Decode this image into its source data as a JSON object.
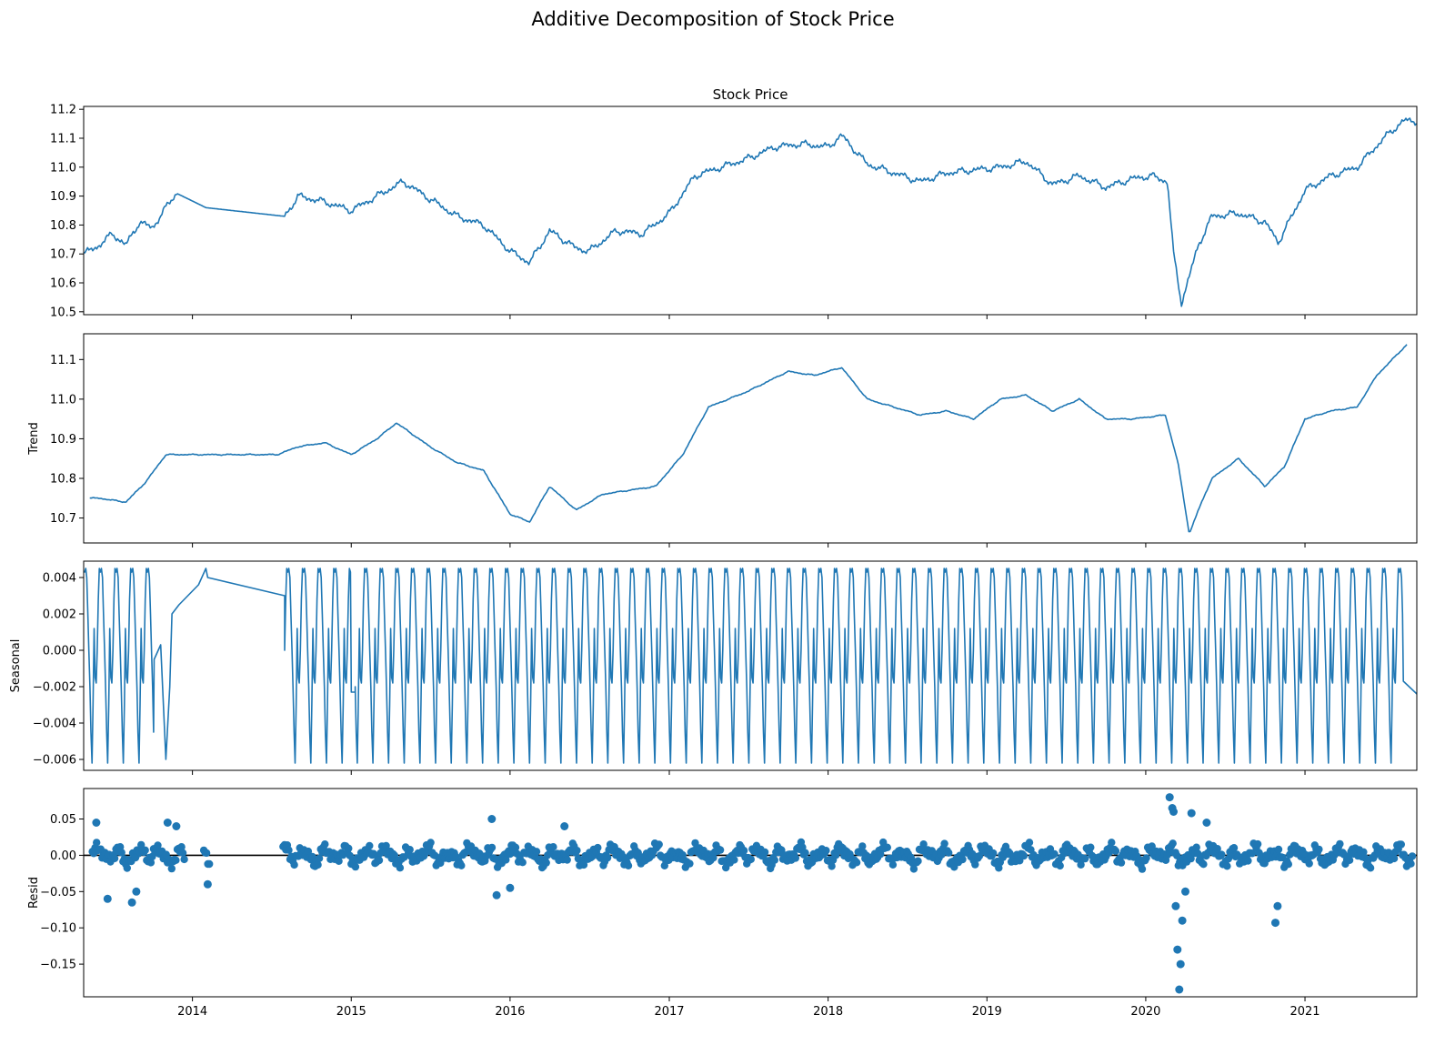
{
  "figure": {
    "title": "Additive Decomposition of Stock Price",
    "line_color": "#1f77b4",
    "zero_line_color": "#000000"
  },
  "chart_data": [
    {
      "type": "line",
      "name": "observed",
      "title": "Stock Price",
      "ylabel": "",
      "xlim": [
        "2013-04-26",
        "2021-09-15"
      ],
      "ylim": [
        10.49,
        11.21
      ],
      "yticks": [
        "10.5",
        "10.6",
        "10.7",
        "10.8",
        "10.9",
        "11.0",
        "11.1",
        "11.2"
      ],
      "x": [
        "2013-04-26",
        "2013-06-01",
        "2013-07-01",
        "2013-08-01",
        "2013-09-01",
        "2013-10-01",
        "2013-11-01",
        "2013-11-25",
        "2014-02-01",
        "2014-08-01",
        "2014-09-01",
        "2014-11-01",
        "2015-01-01",
        "2015-03-01",
        "2015-05-01",
        "2015-07-01",
        "2015-09-01",
        "2015-11-01",
        "2016-01-01",
        "2016-02-15",
        "2016-04-01",
        "2016-06-01",
        "2016-07-01",
        "2016-09-01",
        "2016-11-01",
        "2017-01-01",
        "2017-03-01",
        "2017-05-01",
        "2017-07-01",
        "2017-09-01",
        "2017-11-01",
        "2018-01-01",
        "2018-02-01",
        "2018-04-01",
        "2018-06-01",
        "2018-08-01",
        "2018-10-01",
        "2018-12-01",
        "2019-02-01",
        "2019-04-01",
        "2019-06-01",
        "2019-08-01",
        "2019-10-01",
        "2019-12-01",
        "2020-01-15",
        "2020-02-20",
        "2020-03-05",
        "2020-03-23",
        "2020-05-01",
        "2020-06-01",
        "2020-08-01",
        "2020-10-01",
        "2020-11-01",
        "2021-01-01",
        "2021-03-01",
        "2021-05-01",
        "2021-07-01",
        "2021-08-15",
        "2021-09-15"
      ],
      "values": [
        10.7,
        10.73,
        10.77,
        10.73,
        10.81,
        10.79,
        10.86,
        10.91,
        10.86,
        10.83,
        10.9,
        10.88,
        10.85,
        10.9,
        10.95,
        10.89,
        10.83,
        10.8,
        10.71,
        10.67,
        10.78,
        10.72,
        10.71,
        10.78,
        10.77,
        10.84,
        10.97,
        11.0,
        11.03,
        11.07,
        11.08,
        11.07,
        11.11,
        11.01,
        10.98,
        10.95,
        10.98,
        10.99,
        11.0,
        11.02,
        10.94,
        10.97,
        10.93,
        10.96,
        10.97,
        10.95,
        10.7,
        10.53,
        10.73,
        10.83,
        10.84,
        10.81,
        10.74,
        10.92,
        10.97,
        11.0,
        11.1,
        11.16,
        11.16
      ]
    },
    {
      "type": "line",
      "name": "trend",
      "ylabel": "Trend",
      "xlim": [
        "2013-04-26",
        "2021-09-15"
      ],
      "ylim": [
        10.637,
        11.165
      ],
      "yticks": [
        "10.7",
        "10.8",
        "10.9",
        "11.0",
        "11.1"
      ],
      "x": [
        "2013-05-10",
        "2013-06-01",
        "2013-08-01",
        "2013-09-15",
        "2013-11-01",
        "2014-01-01",
        "2014-07-15",
        "2014-09-01",
        "2014-11-01",
        "2015-01-01",
        "2015-03-01",
        "2015-04-15",
        "2015-07-01",
        "2015-09-01",
        "2015-11-01",
        "2016-01-01",
        "2016-02-15",
        "2016-04-01",
        "2016-06-01",
        "2016-08-01",
        "2016-10-01",
        "2016-12-01",
        "2017-02-01",
        "2017-04-01",
        "2017-07-01",
        "2017-10-01",
        "2017-12-01",
        "2018-02-01",
        "2018-04-01",
        "2018-06-01",
        "2018-08-01",
        "2018-10-01",
        "2018-12-01",
        "2019-02-01",
        "2019-04-01",
        "2019-06-01",
        "2019-08-01",
        "2019-10-01",
        "2019-12-01",
        "2020-02-15",
        "2020-03-15",
        "2020-04-10",
        "2020-05-01",
        "2020-06-01",
        "2020-08-01",
        "2020-10-01",
        "2020-11-15",
        "2021-01-01",
        "2021-03-01",
        "2021-05-01",
        "2021-06-15",
        "2021-08-25"
      ],
      "values": [
        10.75,
        10.75,
        10.74,
        10.79,
        10.86,
        10.86,
        10.86,
        10.88,
        10.89,
        10.86,
        10.9,
        10.94,
        10.88,
        10.84,
        10.82,
        10.71,
        10.69,
        10.78,
        10.72,
        10.76,
        10.77,
        10.78,
        10.86,
        10.98,
        11.02,
        11.07,
        11.06,
        11.08,
        11.0,
        10.98,
        10.96,
        10.97,
        10.95,
        11.0,
        11.01,
        10.97,
        11.0,
        10.95,
        10.95,
        10.96,
        10.84,
        10.66,
        10.72,
        10.8,
        10.85,
        10.78,
        10.83,
        10.95,
        10.97,
        10.98,
        11.06,
        11.14
      ]
    },
    {
      "type": "line",
      "name": "seasonal",
      "ylabel": "Seasonal",
      "xlim": [
        "2013-04-26",
        "2021-09-15"
      ],
      "ylim": [
        -0.0066,
        0.0049
      ],
      "yticks": [
        "−0.006",
        "−0.004",
        "−0.002",
        "0.000",
        "0.002",
        "0.004"
      ],
      "cycle_days": 36,
      "cycle_shape": [
        0.0043,
        0.0045,
        0.004,
        0.002,
        0.0,
        -0.002,
        -0.0045,
        -0.0062,
        -0.003,
        0.0012,
        -0.0015,
        -0.0018,
        0.0,
        0.0028,
        0.0045
      ],
      "segments": [
        {
          "start": "2013-04-26",
          "end": "2013-10-05",
          "mode": "cycle"
        },
        {
          "start": "2013-10-05",
          "end": "2013-11-15",
          "mode": "points",
          "x": [
            "2013-10-05",
            "2013-10-20",
            "2013-11-01",
            "2013-11-10",
            "2013-11-15"
          ],
          "values": [
            -0.0005,
            0.0003,
            -0.006,
            -0.002,
            0.002
          ]
        },
        {
          "start": "2013-11-15",
          "end": "2014-02-05",
          "mode": "points",
          "x": [
            "2013-11-15",
            "2013-12-01",
            "2014-01-15",
            "2014-02-01",
            "2014-02-05"
          ],
          "values": [
            0.002,
            0.0025,
            0.0036,
            0.0045,
            0.004
          ]
        },
        {
          "start": "2014-02-05",
          "end": "2014-08-01",
          "mode": "points",
          "x": [
            "2014-02-05",
            "2014-08-01"
          ],
          "values": [
            0.004,
            0.003
          ]
        },
        {
          "start": "2014-08-01",
          "end": "2015-01-01",
          "mode": "cycle"
        },
        {
          "start": "2015-01-01",
          "end": "2015-01-10",
          "mode": "points",
          "x": [
            "2015-01-01",
            "2015-01-10"
          ],
          "values": [
            -0.0023,
            -0.0023
          ]
        },
        {
          "start": "2015-01-10",
          "end": "2021-08-15",
          "mode": "cycle"
        },
        {
          "start": "2021-08-15",
          "end": "2021-09-15",
          "mode": "points",
          "x": [
            "2021-08-15",
            "2021-09-15"
          ],
          "values": [
            -0.0017,
            -0.0024
          ]
        }
      ]
    },
    {
      "type": "scatter",
      "name": "resid",
      "ylabel": "Resid",
      "xlim": [
        "2013-04-26",
        "2021-09-15"
      ],
      "ylim": [
        -0.195,
        0.092
      ],
      "yticks": [
        "−0.15",
        "−0.10",
        "−0.05",
        "0.00",
        "0.05"
      ],
      "baseline": 0,
      "base_spread": 0.012,
      "gaps": [
        [
          "2013-12-15",
          "2014-01-25"
        ],
        [
          "2014-02-12",
          "2014-07-28"
        ]
      ],
      "extreme_points": {
        "x": [
          "2013-05-25",
          "2013-06-20",
          "2013-08-15",
          "2013-08-25",
          "2013-11-05",
          "2013-11-25",
          "2014-02-05",
          "2015-11-20",
          "2015-12-01",
          "2016-01-01",
          "2016-05-05",
          "2020-02-25",
          "2020-03-02",
          "2020-03-05",
          "2020-03-10",
          "2020-03-14",
          "2020-03-18",
          "2020-03-21",
          "2020-03-25",
          "2020-04-01",
          "2020-04-15",
          "2020-05-20",
          "2020-10-25",
          "2020-10-30"
        ],
        "values": [
          0.045,
          -0.06,
          -0.065,
          -0.05,
          0.045,
          0.04,
          -0.04,
          0.05,
          -0.055,
          -0.045,
          0.04,
          0.08,
          0.065,
          0.06,
          -0.07,
          -0.13,
          -0.185,
          -0.15,
          -0.09,
          -0.05,
          0.058,
          0.045,
          -0.093,
          -0.07
        ]
      }
    }
  ],
  "x_axis": {
    "ticks": [
      "2014-01-01",
      "2015-01-01",
      "2016-01-01",
      "2017-01-01",
      "2018-01-01",
      "2019-01-01",
      "2020-01-01",
      "2021-01-01"
    ],
    "labels": [
      "2014",
      "2015",
      "2016",
      "2017",
      "2018",
      "2019",
      "2020",
      "2021"
    ]
  }
}
